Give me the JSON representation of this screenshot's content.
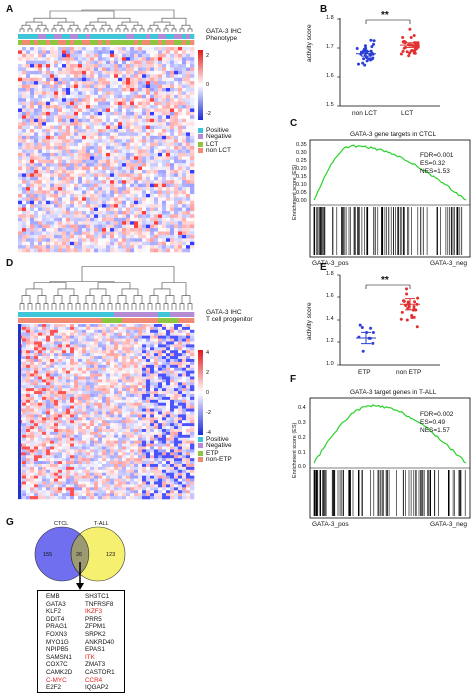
{
  "panels": {
    "A": {
      "label": "A",
      "legend_track1": "GATA-3 IHC",
      "legend_track2": "Phenotype",
      "scale_ticks": [
        "2",
        "0",
        "-2"
      ],
      "legend_items": [
        "Positive",
        "Negative",
        "LCT",
        "non LCT"
      ],
      "colors": {
        "positive": "#3ec6d8",
        "negative": "#b58bd6",
        "lct": "#8cc63f",
        "nonlct": "#f08a73"
      }
    },
    "B": {
      "label": "B",
      "ylabel": "activity score",
      "sig": "**",
      "chart_data": {
        "type": "scatter",
        "categories": [
          "non LCT",
          "LCT"
        ],
        "ylabel": "activity score",
        "ylim": [
          1.5,
          1.8
        ],
        "yticks": [
          "1.5",
          "1.6",
          "1.7",
          "1.8"
        ],
        "means": [
          1.68,
          1.71
        ],
        "significance": "**"
      }
    },
    "C": {
      "label": "C",
      "title": "GATA-3 gene targets in CTCL",
      "ylabel": "Enrichment score (ES)",
      "stats": [
        "FDR=0.001",
        "ES=0.32",
        "NES=1.53"
      ],
      "xleft": "GATA-3_pos",
      "xright": "GATA-3_neg",
      "yticks": [
        "0.35",
        "0.30",
        "0.25",
        "0.20",
        "0.15",
        "0.10",
        "0.05",
        "0.00"
      ]
    },
    "D": {
      "label": "D",
      "legend_track1": "GATA-3 IHC",
      "legend_track2": "T cell progenitor",
      "scale_ticks": [
        "4",
        "2",
        "0",
        "-2",
        "-4"
      ],
      "legend_items": [
        "Positive",
        "Negative",
        "ETP",
        "non-ETP"
      ]
    },
    "E": {
      "label": "E",
      "ylabel": "activity score",
      "sig": "**",
      "chart_data": {
        "type": "scatter",
        "categories": [
          "ETP",
          "non ETP"
        ],
        "ylabel": "activity score",
        "ylim": [
          1.0,
          1.8
        ],
        "yticks": [
          "1.0",
          "1.2",
          "1.4",
          "1.6",
          "1.8"
        ],
        "means": [
          1.24,
          1.54
        ],
        "significance": "**"
      }
    },
    "F": {
      "label": "F",
      "title": "GATA-3 target genes in T-ALL",
      "ylabel": "Enrichment score (ES)",
      "stats": [
        "FDR=0.002",
        "ES=0.49",
        "NES=1.57"
      ],
      "xleft": "GATA-3_pos",
      "xright": "GATA-3_neg",
      "yticks": [
        "0.4",
        "0.3",
        "0.2",
        "0.1",
        "0.0"
      ]
    },
    "G": {
      "label": "G",
      "set_left": "CTCL",
      "set_right": "T-ALL",
      "n_left": "155",
      "n_both": "26",
      "n_right": "123",
      "genes_col1": [
        "EMB",
        "GATA3",
        "KLF2",
        "DDIT4",
        "PRAG1",
        "FOXN3",
        "MYO1G",
        "NPIPB5",
        "SAMSN1",
        "COX7C",
        "CAMK2D",
        "C-MYC",
        "E2F2"
      ],
      "genes_col2": [
        "SH3TC1",
        "TNFRSF8",
        "IKZF3",
        "PRR5",
        "ZFPM1",
        "SRPK2",
        "ANKRD40",
        "EPAS1",
        "ITK",
        "ZMAT3",
        "CASTOR1",
        "CCR4",
        "IQGAP2"
      ],
      "red_genes": [
        "IKZF3",
        "ITK",
        "C-MYC",
        "CCR4"
      ]
    }
  }
}
